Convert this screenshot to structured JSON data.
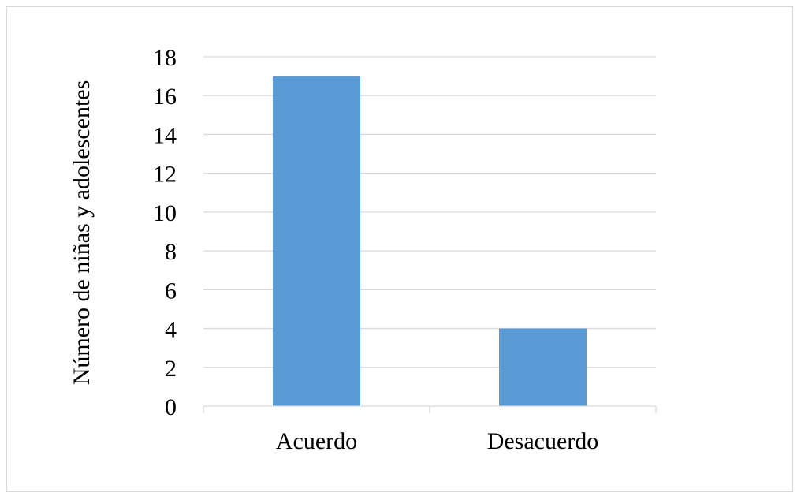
{
  "chart_data": {
    "type": "bar",
    "title": "",
    "xlabel": "",
    "ylabel": "Número de niñas y adolescentes",
    "categories": [
      "Acuerdo",
      "Desacuerdo"
    ],
    "values": [
      17,
      4
    ],
    "ylim": [
      0,
      18
    ],
    "yticks": [
      "0",
      "2",
      "4",
      "6",
      "8",
      "10",
      "12",
      "14",
      "16",
      "18"
    ],
    "grid": true,
    "bar_color": "#5B9BD5",
    "grid_color": "#d9d9d9"
  }
}
